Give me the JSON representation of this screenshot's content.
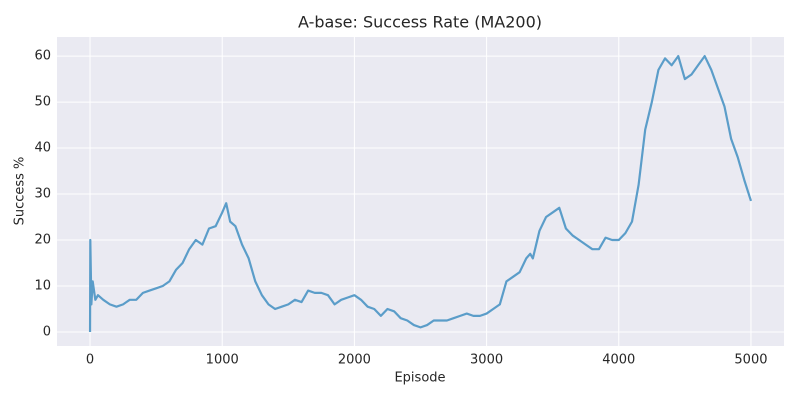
{
  "chart_data": {
    "type": "line",
    "title": "A-base: Success Rate (MA200)",
    "xlabel": "Episode",
    "ylabel": "Success %",
    "x": [
      0,
      2,
      10,
      20,
      40,
      60,
      100,
      150,
      200,
      250,
      300,
      350,
      400,
      450,
      500,
      550,
      600,
      650,
      700,
      750,
      800,
      850,
      900,
      950,
      1000,
      1030,
      1060,
      1100,
      1150,
      1200,
      1250,
      1300,
      1350,
      1400,
      1450,
      1500,
      1550,
      1600,
      1650,
      1700,
      1750,
      1800,
      1850,
      1900,
      1950,
      2000,
      2050,
      2100,
      2150,
      2200,
      2250,
      2300,
      2350,
      2400,
      2450,
      2500,
      2550,
      2600,
      2650,
      2700,
      2750,
      2800,
      2850,
      2900,
      2950,
      3000,
      3050,
      3100,
      3150,
      3200,
      3250,
      3300,
      3330,
      3350,
      3400,
      3450,
      3500,
      3550,
      3600,
      3650,
      3700,
      3750,
      3800,
      3850,
      3900,
      3950,
      4000,
      4050,
      4100,
      4150,
      4200,
      4250,
      4300,
      4350,
      4400,
      4450,
      4500,
      4550,
      4600,
      4650,
      4700,
      4750,
      4800,
      4850,
      4900,
      4950,
      5000
    ],
    "series": [
      {
        "name": "Success %",
        "color": "#5b9dc9",
        "values": [
          0,
          20,
          6,
          11,
          7,
          8,
          7,
          6,
          5.5,
          6,
          7,
          7,
          8.5,
          9,
          9.5,
          10,
          11,
          13.5,
          15,
          18,
          20,
          19,
          22.5,
          23,
          26,
          28,
          24,
          23,
          19,
          16,
          11,
          8,
          6,
          5,
          5.5,
          6,
          7,
          6.5,
          9,
          8.5,
          8.5,
          8,
          6,
          7,
          7.5,
          8,
          7,
          5.5,
          5,
          3.5,
          5,
          4.5,
          3,
          2.5,
          1.5,
          1,
          1.5,
          2.5,
          2.5,
          2.5,
          3,
          3.5,
          4,
          3.5,
          3.5,
          4,
          5,
          6,
          11,
          12,
          13,
          16,
          17,
          16,
          22,
          25,
          26,
          27,
          22.5,
          21,
          20,
          19,
          18,
          18,
          20.5,
          20,
          20,
          21.5,
          24,
          32,
          44,
          50,
          57,
          59.5,
          58,
          60,
          55,
          56,
          58,
          60,
          57,
          53,
          49,
          42,
          38,
          33,
          28.5
        ]
      }
    ],
    "xlim": [
      -250,
      5250
    ],
    "ylim": [
      -3.05,
      64.15
    ],
    "xticks": [
      0,
      1000,
      2000,
      3000,
      4000,
      5000
    ],
    "yticks": [
      0,
      10,
      20,
      30,
      40,
      50,
      60
    ],
    "grid": true
  }
}
